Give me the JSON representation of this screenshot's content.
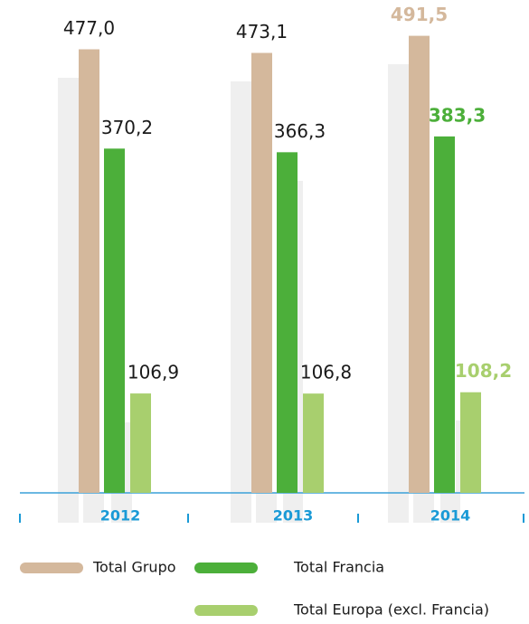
{
  "chart_data": {
    "type": "bar",
    "categories": [
      "2012",
      "2013",
      "2014"
    ],
    "series": [
      {
        "name": "Total Grupo",
        "color": "#d4b89c",
        "values": [
          477.0,
          473.1,
          491.5
        ],
        "value_labels": [
          "477,0",
          "473,1",
          "491,5"
        ]
      },
      {
        "name": "Total Francia",
        "color": "#4caf3a",
        "values": [
          370.2,
          366.3,
          383.3
        ],
        "value_labels": [
          "370,2",
          "366,3",
          "383,3"
        ]
      },
      {
        "name": "Total Europa (excl. Francia)",
        "color": "#a8cf6e",
        "values": [
          106.9,
          106.8,
          108.2
        ],
        "value_labels": [
          "106,9",
          "106,8",
          "108,2"
        ]
      }
    ],
    "ylim": [
      0,
      530
    ]
  }
}
